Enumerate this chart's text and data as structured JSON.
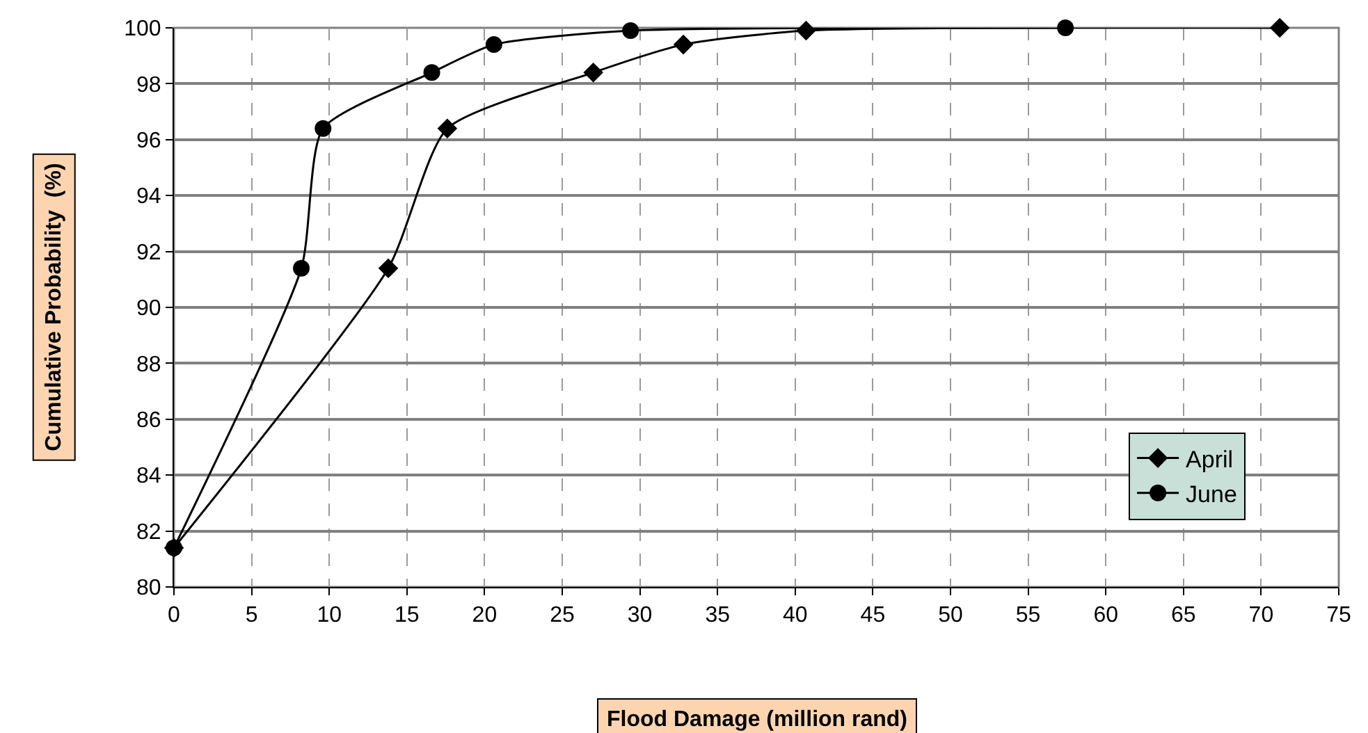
{
  "chart_data": {
    "type": "line",
    "xlabel": "Flood Damage (million rand)",
    "ylabel": "Cumulative Probability  (%)",
    "series": [
      {
        "name": "April",
        "color": "#000000",
        "marker": "diamond",
        "x": [
          0,
          13.8,
          17.6,
          27,
          32.8,
          40.7,
          71.2
        ],
        "values": [
          81.4,
          91.4,
          96.4,
          98.4,
          99.4,
          99.9,
          100
        ]
      },
      {
        "name": "June",
        "color": "#000000",
        "marker": "circle",
        "x": [
          0,
          8.2,
          9.6,
          16.6,
          20.6,
          29.4,
          57.4
        ],
        "values": [
          81.4,
          91.4,
          96.4,
          98.4,
          99.4,
          99.9,
          100
        ]
      }
    ],
    "xlim": [
      0,
      75
    ],
    "xticks": [
      0,
      5,
      10,
      15,
      20,
      25,
      30,
      35,
      40,
      45,
      50,
      55,
      60,
      65,
      70,
      75
    ],
    "ylim": [
      80,
      100
    ],
    "yticks": [
      80,
      82,
      84,
      86,
      88,
      90,
      92,
      94,
      96,
      98,
      100
    ],
    "grid": true,
    "legend": "bottom right",
    "line_style": "solid"
  }
}
